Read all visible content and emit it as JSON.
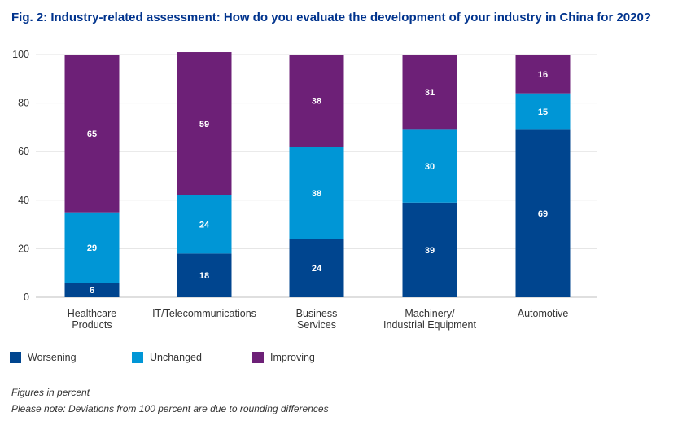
{
  "title": "Fig. 2: Industry-related assessment: How do you evaluate the development of your industry in China for 2020?",
  "chart_data": {
    "type": "bar",
    "stacked": true,
    "categories": [
      [
        "Healthcare",
        "Products"
      ],
      [
        "IT/Telecommunications"
      ],
      [
        "Business",
        "Services"
      ],
      [
        "Machinery/",
        "Industrial Equipment"
      ],
      [
        "Automotive"
      ]
    ],
    "series": [
      {
        "name": "Worsening",
        "color": "#00458f",
        "values": [
          6,
          18,
          24,
          39,
          69
        ]
      },
      {
        "name": "Unchanged",
        "color": "#0096d6",
        "values": [
          29,
          24,
          38,
          30,
          15
        ]
      },
      {
        "name": "Improving",
        "color": "#6d2077",
        "values": [
          65,
          59,
          38,
          31,
          16
        ]
      }
    ],
    "ylim": [
      0,
      100
    ],
    "yticks": [
      0,
      20,
      40,
      60,
      80,
      100
    ],
    "grid": true,
    "xlabel": "",
    "ylabel": ""
  },
  "notes": {
    "unit": "Figures in percent",
    "rounding": "Please note: Deviations from 100 percent are due to rounding differences"
  }
}
